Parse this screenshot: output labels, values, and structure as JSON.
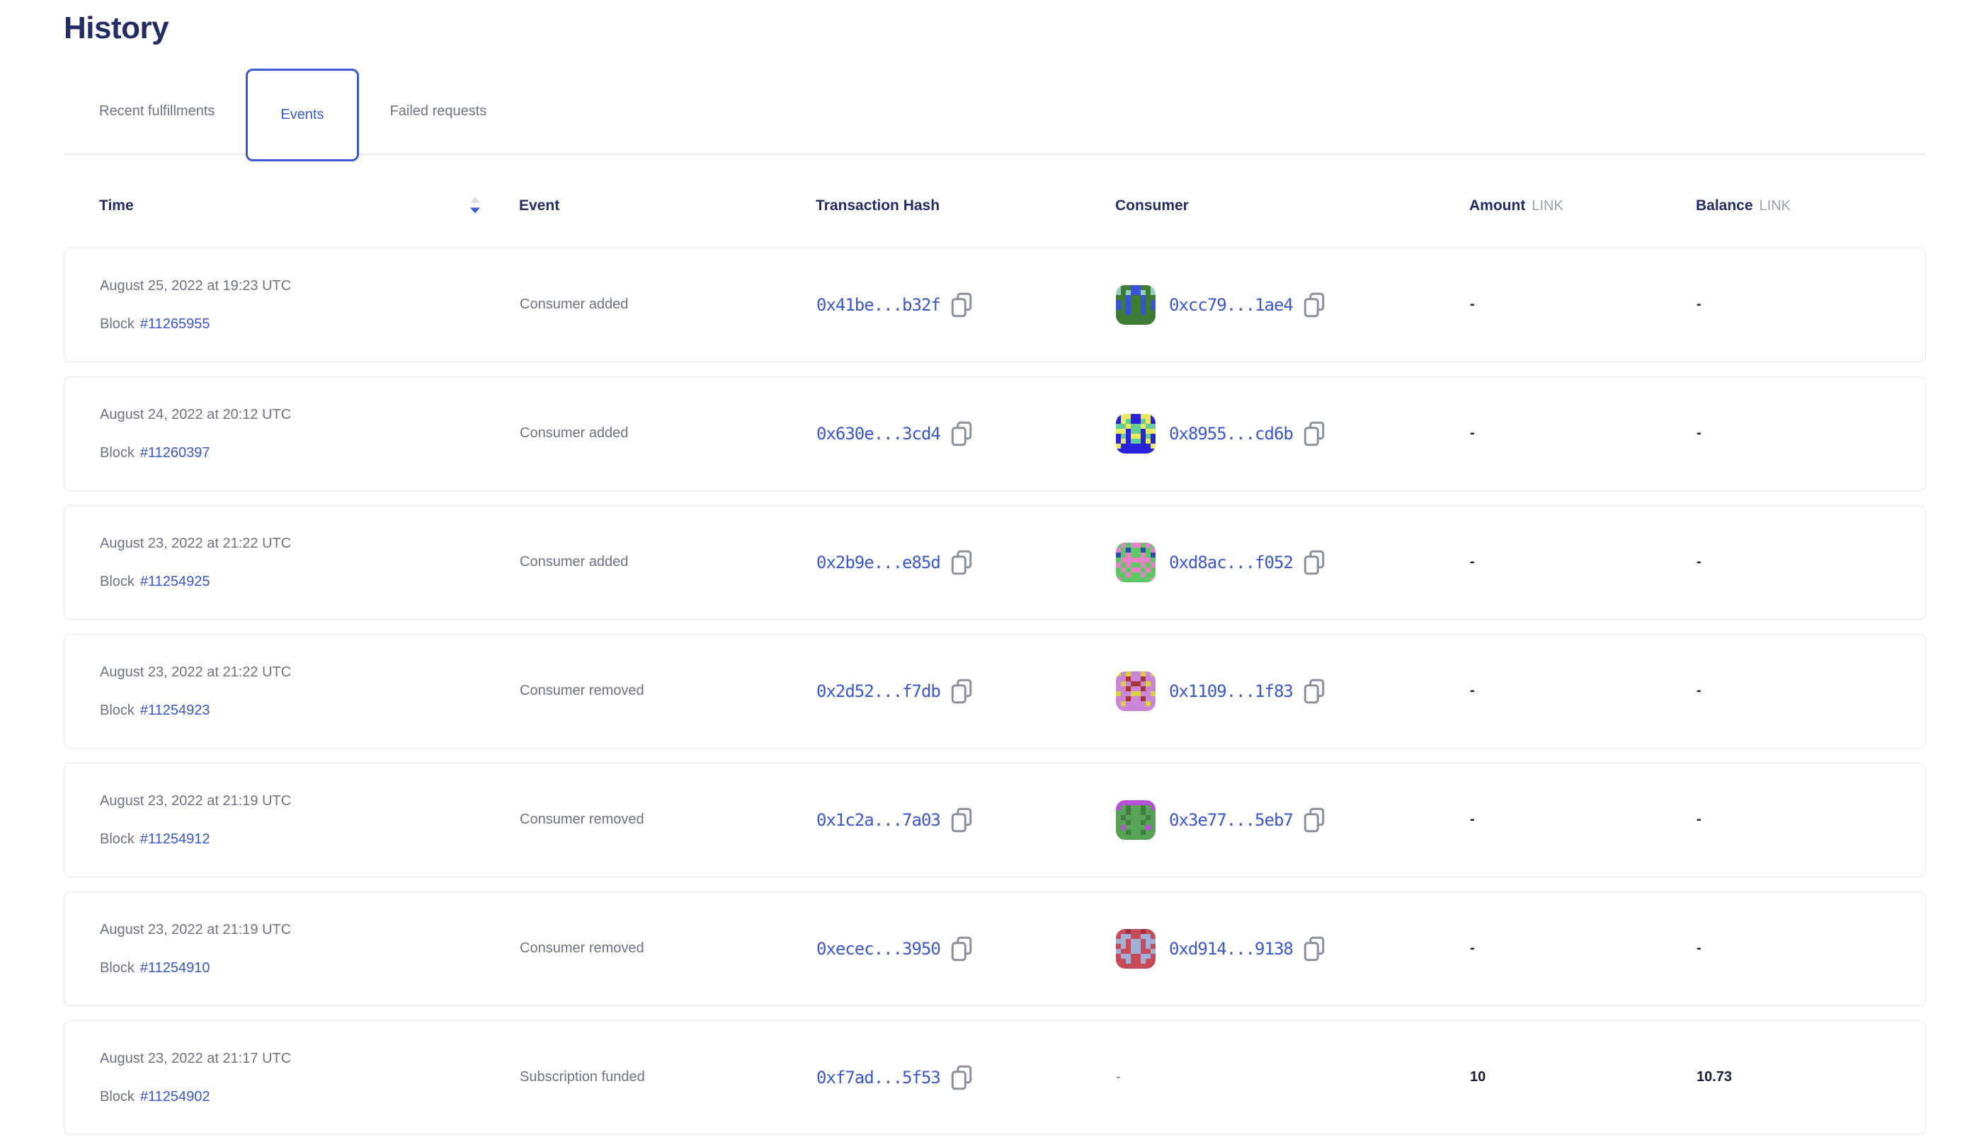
{
  "page": {
    "title": "History"
  },
  "tabs": [
    {
      "label": "Recent fulfillments",
      "active": false
    },
    {
      "label": "Events",
      "active": true
    },
    {
      "label": "Failed requests",
      "active": false
    }
  ],
  "table": {
    "block_prefix": "Block",
    "headers": {
      "time": "Time",
      "event": "Event",
      "transaction_hash": "Transaction Hash",
      "consumer": "Consumer",
      "amount": "Amount",
      "balance": "Balance",
      "unit": "LINK"
    },
    "sort": {
      "column": "Time",
      "direction": "descending"
    },
    "rows": [
      {
        "date": "August 25, 2022 at 19:23 UTC",
        "block": "#11265955",
        "event": "Consumer added",
        "tx_hash": "0x41be...b32f",
        "consumer": {
          "address": "0xcc79...1ae4",
          "avatar": {
            "bg": "#3c7d33",
            "c": "#3a52d9",
            "s": "#8fd2bd",
            "grid": [
              "s..cc..s",
              "s.sccs.s",
              "..c..c..",
              "c.c..c.c",
              "c.c..c.c",
              "..c..c..",
              "........",
              "........"
            ]
          }
        },
        "amount": "-",
        "balance": "-"
      },
      {
        "date": "August 24, 2022 at 20:12 UTC",
        "block": "#11260397",
        "event": "Consumer added",
        "tx_hash": "0x630e...3cd4",
        "consumer": {
          "address": "0x8955...cd6b",
          "avatar": {
            "bg": "#2824de",
            "c": "#63cf96",
            "s": "#ece95f",
            "grid": [
              ".ss..ss.",
              ".sc..cs.",
              "ccsccscc",
              "ss.cc.ss",
              ".c.ss.c.",
              ".s.cc.s.",
              "s......s",
              "........"
            ]
          }
        },
        "amount": "-",
        "balance": "-"
      },
      {
        "date": "August 23, 2022 at 21:22 UTC",
        "block": "#11254925",
        "event": "Consumer added",
        "tx_hash": "0x2b9e...e85d",
        "consumer": {
          "address": "0xd8ac...f052",
          "avatar": {
            "bg": "#5dc764",
            "c": "#e981c8",
            "s": "#2b4bb5",
            "grid": [
              ".c.cc.c.",
              "c.s..s.c",
              "s.c..c.s",
              ".cccccc.",
              "c.c..c.c",
              ".c.cc.c.",
              "..c..c..",
              "c......c"
            ]
          }
        },
        "amount": "-",
        "balance": "-"
      },
      {
        "date": "August 23, 2022 at 21:22 UTC",
        "block": "#11254923",
        "event": "Consumer removed",
        "tx_hash": "0x2d52...f7db",
        "consumer": {
          "address": "0x1109...1f83",
          "avatar": {
            "bg": "#cb85d6",
            "c": "#d9d13e",
            "s": "#a93434",
            "grid": [
              "c.c..c.c",
              "..s..s..",
              ".c.ss.c.",
              "..s..s..",
              "c..cc..c",
              "..s..s..",
              ".c....c.",
              "........"
            ]
          }
        },
        "amount": "-",
        "balance": "-"
      },
      {
        "date": "August 23, 2022 at 21:19 UTC",
        "block": "#11254912",
        "event": "Consumer removed",
        "tx_hash": "0x1c2a...7a03",
        "consumer": {
          "address": "0x3e77...5eb7",
          "avatar": {
            "bg": "#57a457",
            "c": "#b84fd8",
            "s": "#417e41",
            "grid": [
              "cccccccc",
              "c.s..s.c",
              "..s..s..",
              ".s....s.",
              "..s..s..",
              ".c....c.",
              "..s..s..",
              "........"
            ]
          }
        },
        "amount": "-",
        "balance": "-"
      },
      {
        "date": "August 23, 2022 at 21:19 UTC",
        "block": "#11254910",
        "event": "Consumer removed",
        "tx_hash": "0xecec...3950",
        "consumer": {
          "address": "0xd914...9138",
          "avatar": {
            "bg": "#c94a57",
            "c": "#9fb0d9",
            "s": "#a32e3d",
            "grid": [
              "..s..s..",
              ".cc..cc.",
              "cc.cc.cc",
              ".c.cc.c.",
              "c..cc..c",
              ".cc..cc.",
              "..c..c..",
              "........"
            ]
          }
        },
        "amount": "-",
        "balance": "-"
      },
      {
        "date": "August 23, 2022 at 21:17 UTC",
        "block": "#11254902",
        "event": "Subscription funded",
        "tx_hash": "0xf7ad...5f53",
        "consumer": null,
        "empty": "-",
        "amount": "10",
        "balance": "10.73"
      }
    ]
  },
  "icons": {
    "copy": "copy-icon",
    "sort": "sort-icon"
  },
  "colors": {
    "heading": "#232d65",
    "accent": "#375bd2",
    "link": "#3a56d4",
    "gray_text": "#6d7380",
    "dark_value": "#151e36",
    "unit_gray": "#9aa3ae",
    "card_border": "#e4e7ec",
    "divider": "#e8eaee",
    "sort_inactive": "#d7dce4",
    "icon_gray": "#8a919d"
  }
}
